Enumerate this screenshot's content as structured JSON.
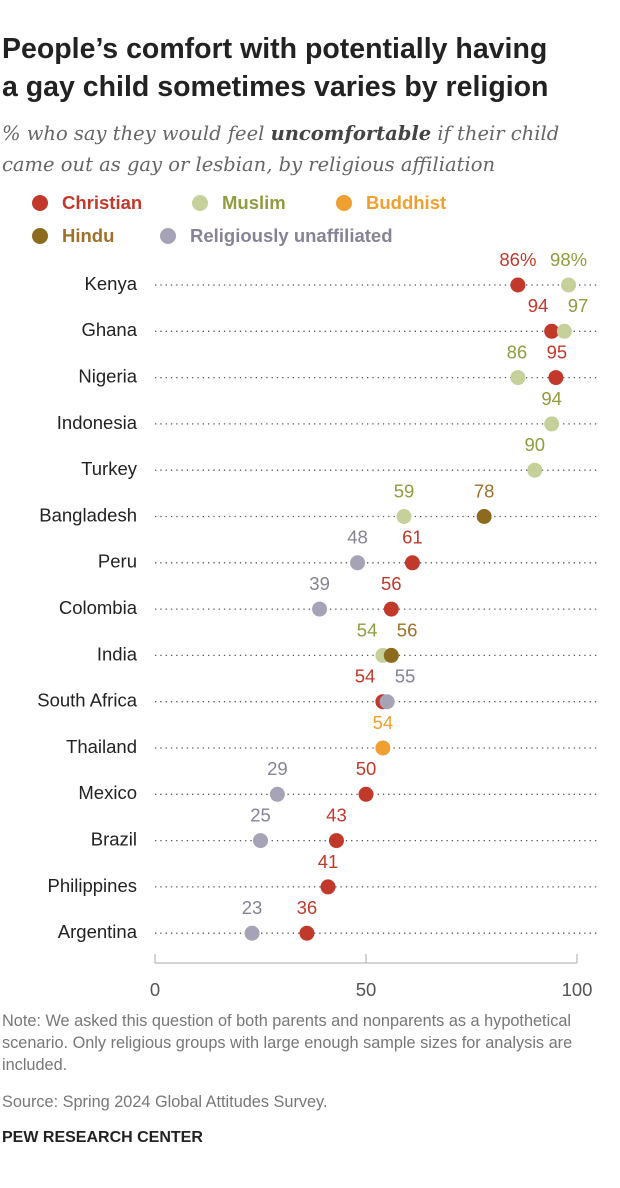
{
  "chart_data": {
    "type": "dot",
    "title": [
      "People’s comfort with potentially having",
      "a gay child sometimes varies by religion"
    ],
    "subtitle": [
      "% who say they would feel ",
      "uncomfortable",
      " if their child came out as gay or lesbian, by religious affiliation"
    ],
    "categories": [
      "Kenya",
      "Ghana",
      "Nigeria",
      "Indonesia",
      "Turkey",
      "Bangladesh",
      "Peru",
      "Colombia",
      "India",
      "South Africa",
      "Thailand",
      "Mexico",
      "Brazil",
      "Philippines",
      "Argentina"
    ],
    "series": [
      {
        "name": "Christian",
        "color": "#c0392b",
        "label_color": "#c0392b",
        "values": [
          86,
          94,
          95,
          null,
          null,
          null,
          61,
          56,
          null,
          54,
          null,
          50,
          43,
          41,
          36
        ],
        "value_labels": [
          "86%",
          "94",
          "95",
          null,
          null,
          null,
          "61",
          "56",
          null,
          "54",
          null,
          "50",
          "43",
          "41",
          "36"
        ]
      },
      {
        "name": "Muslim",
        "color": "#c5d09a",
        "label_color": "#8f9c3f",
        "values": [
          98,
          97,
          86,
          94,
          90,
          59,
          null,
          null,
          54,
          null,
          null,
          null,
          null,
          null,
          null
        ],
        "value_labels": [
          "98%",
          "97",
          "86",
          "94",
          "90",
          "59",
          null,
          null,
          "54",
          null,
          null,
          null,
          null,
          null,
          null
        ]
      },
      {
        "name": "Buddhist",
        "color": "#f0a030",
        "label_color": "#f0a030",
        "values": [
          null,
          null,
          null,
          null,
          null,
          null,
          null,
          null,
          null,
          null,
          54,
          null,
          null,
          null,
          null
        ]
      },
      {
        "name": "Hindu",
        "color": "#8c6a1e",
        "label_color": "#a0702a",
        "values": [
          null,
          null,
          null,
          null,
          null,
          78,
          null,
          null,
          56,
          null,
          null,
          null,
          null,
          null,
          null
        ]
      },
      {
        "name": "Religiously unaffiliated",
        "color": "#a5a3b5",
        "label_color": "#858395",
        "values": [
          null,
          null,
          null,
          null,
          null,
          null,
          48,
          39,
          null,
          55,
          null,
          29,
          25,
          null,
          23
        ]
      }
    ],
    "xlim": [
      0,
      100
    ],
    "xticks": [
      0,
      50,
      100
    ],
    "note": "Note: We asked this question of both parents and nonparents as a hypothetical scenario. Only religious groups with large enough sample sizes for analysis are included.",
    "source": "Source: Spring 2024 Global Attitudes Survey.",
    "footer": "PEW RESEARCH CENTER"
  }
}
